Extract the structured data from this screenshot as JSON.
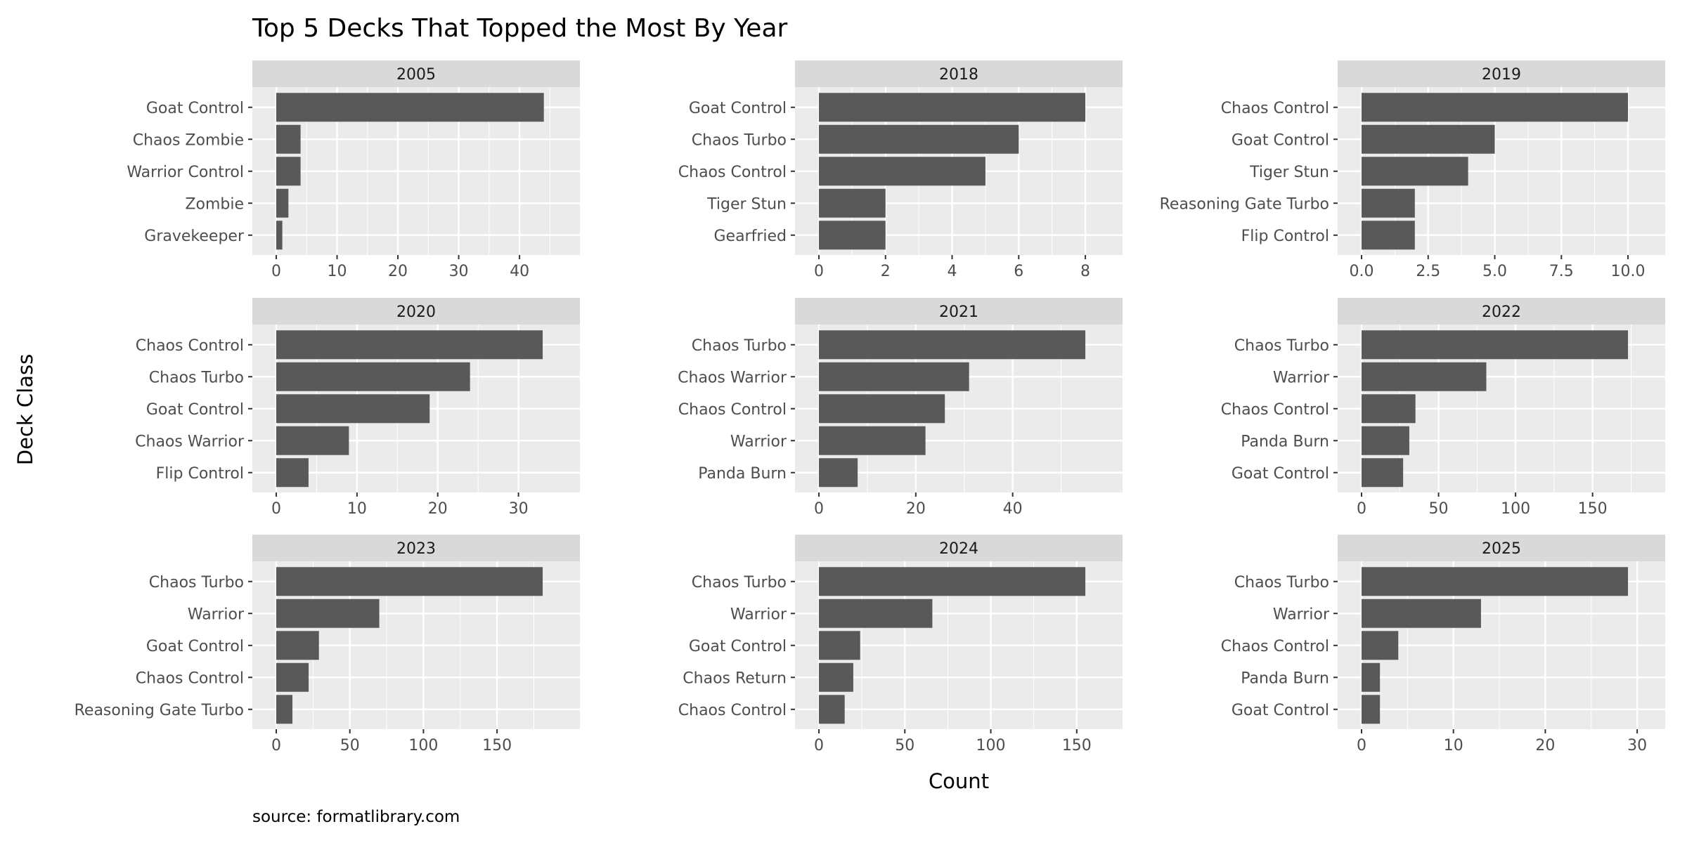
{
  "chart_data": {
    "type": "bar",
    "orientation": "horizontal",
    "title": "Top 5 Decks That Topped the Most By Year",
    "xlabel": "Count",
    "ylabel": "Deck Class",
    "caption": "source: formatlibrary.com",
    "grid": true,
    "legend": "none",
    "colors": {
      "bar": "#595959",
      "panel": "#ebebeb",
      "strip": "#d9d9d9",
      "grid": "#ffffff"
    },
    "facets": [
      {
        "title": "2005",
        "categories": [
          "Goat Control",
          "Chaos Zombie",
          "Warrior Control",
          "Zombie",
          "Gravekeeper"
        ],
        "values": [
          44,
          4,
          4,
          2,
          1
        ],
        "xlim": [
          0,
          46
        ],
        "ticks": [
          0,
          10,
          20,
          30,
          40
        ],
        "tick_labels": [
          "0",
          "10",
          "20",
          "30",
          "40"
        ]
      },
      {
        "title": "2018",
        "categories": [
          "Goat Control",
          "Chaos Turbo",
          "Chaos Control",
          "Tiger Stun",
          "Gearfried"
        ],
        "values": [
          8,
          6,
          5,
          2,
          2
        ],
        "xlim": [
          0,
          8.4
        ],
        "ticks": [
          0,
          2,
          4,
          6,
          8
        ],
        "tick_labels": [
          "0",
          "2",
          "4",
          "6",
          "8"
        ]
      },
      {
        "title": "2019",
        "categories": [
          "Chaos Control",
          "Goat Control",
          "Tiger Stun",
          "Reasoning Gate Turbo",
          "Flip Control"
        ],
        "values": [
          10,
          5,
          4,
          2,
          2
        ],
        "xlim": [
          0,
          10.5
        ],
        "ticks": [
          0,
          2.5,
          5,
          7.5,
          10
        ],
        "tick_labels": [
          "0.0",
          "2.5",
          "5.0",
          "7.5",
          "10.0"
        ]
      },
      {
        "title": "2020",
        "categories": [
          "Chaos Control",
          "Chaos Turbo",
          "Goat Control",
          "Chaos Warrior",
          "Flip Control"
        ],
        "values": [
          33,
          24,
          19,
          9,
          4
        ],
        "xlim": [
          0,
          34.65
        ],
        "ticks": [
          0,
          10,
          20,
          30
        ],
        "tick_labels": [
          "0",
          "10",
          "20",
          "30"
        ]
      },
      {
        "title": "2021",
        "categories": [
          "Chaos Turbo",
          "Chaos Warrior",
          "Chaos Control",
          "Warrior",
          "Panda Burn"
        ],
        "values": [
          55,
          31,
          26,
          22,
          8
        ],
        "xlim": [
          0,
          57.75
        ],
        "ticks": [
          0,
          20,
          40
        ],
        "tick_labels": [
          "0",
          "20",
          "40"
        ]
      },
      {
        "title": "2022",
        "categories": [
          "Chaos Turbo",
          "Warrior",
          "Chaos Control",
          "Panda Burn",
          "Goat Control"
        ],
        "values": [
          173,
          81,
          35,
          31,
          27
        ],
        "xlim": [
          0,
          181.65
        ],
        "ticks": [
          0,
          50,
          100,
          150
        ],
        "tick_labels": [
          "0",
          "50",
          "100",
          "150"
        ]
      },
      {
        "title": "2023",
        "categories": [
          "Chaos Turbo",
          "Warrior",
          "Goat Control",
          "Chaos Control",
          "Reasoning Gate Turbo"
        ],
        "values": [
          181,
          70,
          29,
          22,
          11
        ],
        "xlim": [
          0,
          190.05
        ],
        "ticks": [
          0,
          50,
          100,
          150
        ],
        "tick_labels": [
          "0",
          "50",
          "100",
          "150"
        ]
      },
      {
        "title": "2024",
        "categories": [
          "Chaos Turbo",
          "Warrior",
          "Goat Control",
          "Chaos Return",
          "Chaos Control"
        ],
        "values": [
          155,
          66,
          24,
          20,
          15
        ],
        "xlim": [
          0,
          162.75
        ],
        "ticks": [
          0,
          50,
          100,
          150
        ],
        "tick_labels": [
          "0",
          "50",
          "100",
          "150"
        ]
      },
      {
        "title": "2025",
        "categories": [
          "Chaos Turbo",
          "Warrior",
          "Chaos Control",
          "Panda Burn",
          "Goat Control"
        ],
        "values": [
          29,
          13,
          4,
          2,
          2
        ],
        "xlim": [
          0,
          30.45
        ],
        "ticks": [
          0,
          10,
          20,
          30
        ],
        "tick_labels": [
          "0",
          "10",
          "20",
          "30"
        ]
      }
    ]
  }
}
